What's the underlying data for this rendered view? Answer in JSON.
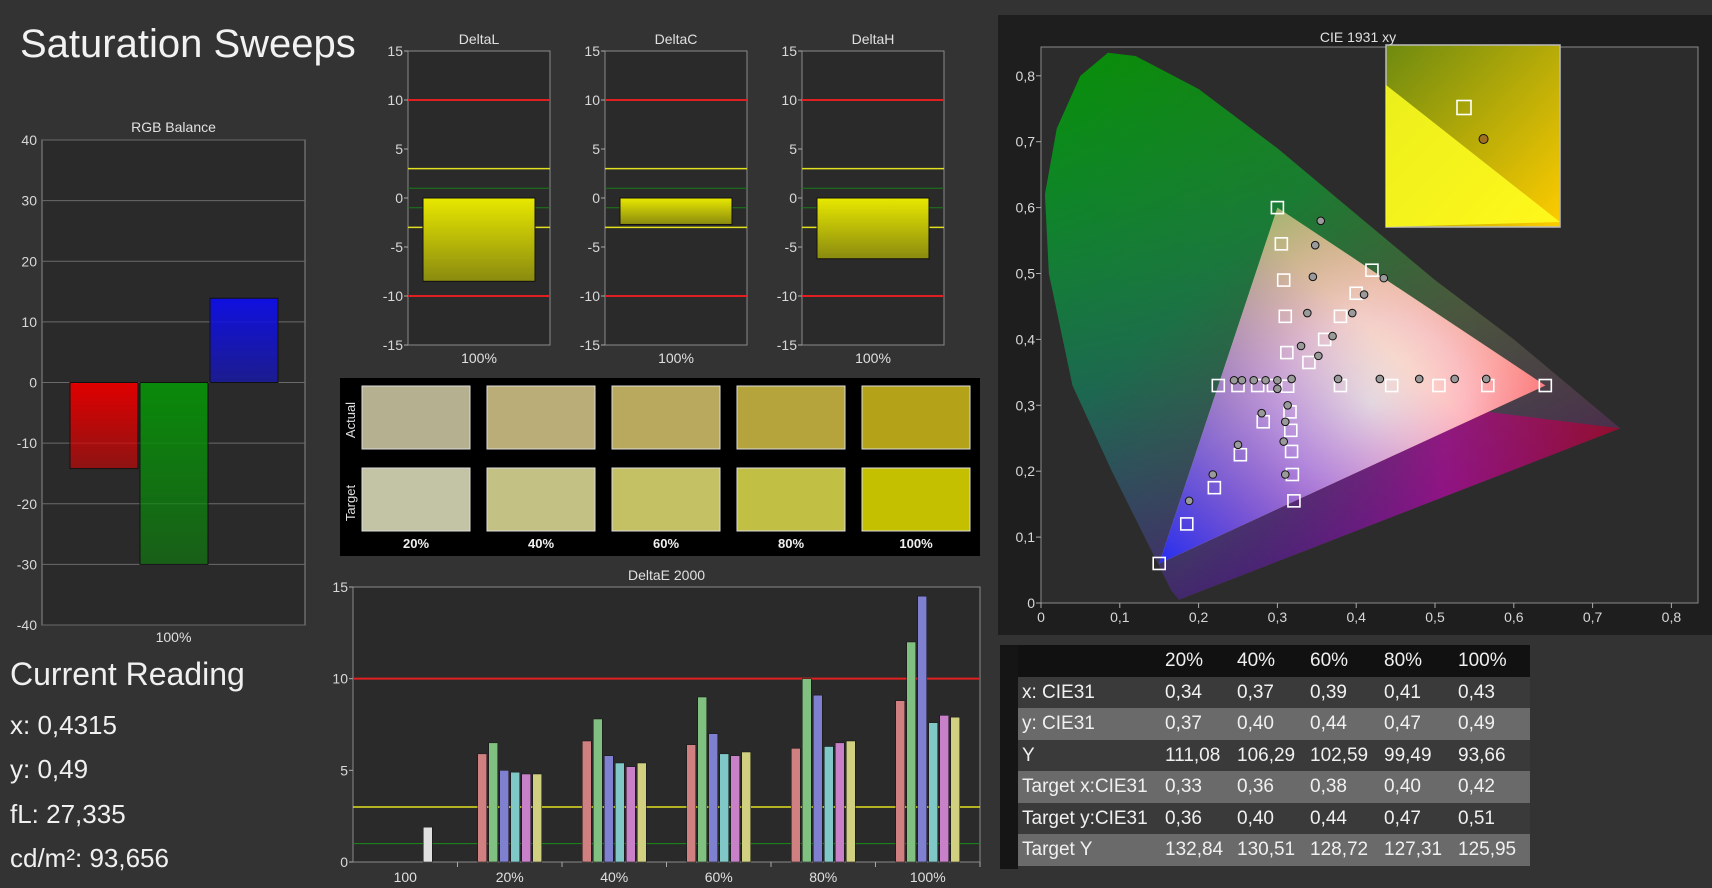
{
  "title": "Saturation Sweeps",
  "rgb_balance": {
    "title": "RGB Balance",
    "ylim": [
      -40,
      40
    ],
    "yticks": [
      40,
      30,
      20,
      10,
      0,
      -10,
      -20,
      -30,
      -40
    ],
    "category": "100%",
    "bars": [
      {
        "channel": "R",
        "value": -14.2,
        "color": "#e00000"
      },
      {
        "channel": "G",
        "value": -30.0,
        "color": "#0a8a0a"
      },
      {
        "channel": "B",
        "value": 13.9,
        "color": "#1010e0"
      }
    ]
  },
  "current_reading": {
    "title": "Current Reading",
    "x": "x: 0,4315",
    "y": "y: 0,49",
    "fl": "fL: 27,335",
    "cdm2": "cd/m²: 93,656"
  },
  "delta_charts": [
    {
      "title": "DeltaL",
      "value": -8.5,
      "category": "100%"
    },
    {
      "title": "DeltaC",
      "value": -2.7,
      "category": "100%"
    },
    {
      "title": "DeltaH",
      "value": -6.2,
      "category": "100%"
    }
  ],
  "delta_axis": {
    "ylim": [
      -15,
      15
    ],
    "yticks": [
      15,
      10,
      5,
      0,
      -5,
      -10,
      -15
    ],
    "red_lines": [
      10,
      -10
    ],
    "yellow_lines": [
      3,
      -3
    ],
    "green_lines": [
      1,
      -1
    ]
  },
  "swatches": {
    "actual_label": "Actual",
    "target_label": "Target",
    "levels": [
      "20%",
      "40%",
      "60%",
      "80%",
      "100%"
    ],
    "actual_colors": [
      "#b5b08f",
      "#bbad77",
      "#b8a95e",
      "#b4a43b",
      "#b4a318"
    ],
    "target_colors": [
      "#c3c3a5",
      "#c4c185",
      "#c4c064",
      "#c2bf45",
      "#c4c000"
    ]
  },
  "chart_data": {
    "type": "bar",
    "title": "DeltaE 2000",
    "ylim": [
      0,
      15
    ],
    "yticks": [
      15,
      10,
      5,
      0
    ],
    "red_line": 10,
    "yellow_line": 3,
    "green_line": 1,
    "categories": [
      "100",
      "20%",
      "40%",
      "60%",
      "80%",
      "100%"
    ],
    "series": [
      {
        "color": "#e0e0e0",
        "values": [
          1.9,
          null,
          null,
          null,
          null,
          null
        ]
      },
      {
        "color": "#d08080",
        "values": [
          null,
          5.9,
          6.6,
          6.4,
          6.2,
          8.8
        ]
      },
      {
        "color": "#80c080",
        "values": [
          null,
          6.5,
          7.8,
          9.0,
          10.0,
          12.0
        ]
      },
      {
        "color": "#8080d0",
        "values": [
          null,
          5.0,
          5.8,
          7.0,
          9.1,
          14.5
        ]
      },
      {
        "color": "#80c8c8",
        "values": [
          null,
          4.9,
          5.4,
          5.9,
          6.3,
          7.6
        ]
      },
      {
        "color": "#c880c8",
        "values": [
          null,
          4.8,
          5.2,
          5.8,
          6.5,
          8.0
        ]
      },
      {
        "color": "#d0d080",
        "values": [
          null,
          4.8,
          5.4,
          6.0,
          6.6,
          7.9
        ]
      }
    ]
  },
  "cie": {
    "title": "CIE 1931 xy",
    "xticks": [
      "0",
      "0,1",
      "0,2",
      "0,3",
      "0,4",
      "0,5",
      "0,6",
      "0,7",
      "0,8"
    ],
    "yticks": [
      "0",
      "0,1",
      "0,2",
      "0,3",
      "0,4",
      "0,5",
      "0,6",
      "0,7",
      "0,8"
    ],
    "gamut": [
      [
        0.64,
        0.33
      ],
      [
        0.3,
        0.6
      ],
      [
        0.15,
        0.06
      ]
    ],
    "targets": [
      [
        0.64,
        0.33
      ],
      [
        0.567,
        0.33
      ],
      [
        0.505,
        0.33
      ],
      [
        0.445,
        0.33
      ],
      [
        0.38,
        0.33
      ],
      [
        0.3,
        0.6
      ],
      [
        0.305,
        0.545
      ],
      [
        0.308,
        0.49
      ],
      [
        0.31,
        0.435
      ],
      [
        0.312,
        0.38
      ],
      [
        0.15,
        0.06
      ],
      [
        0.185,
        0.12
      ],
      [
        0.22,
        0.175
      ],
      [
        0.253,
        0.225
      ],
      [
        0.282,
        0.275
      ],
      [
        0.42,
        0.505
      ],
      [
        0.4,
        0.47
      ],
      [
        0.38,
        0.435
      ],
      [
        0.36,
        0.4
      ],
      [
        0.34,
        0.365
      ],
      [
        0.225,
        0.33
      ],
      [
        0.25,
        0.33
      ],
      [
        0.275,
        0.33
      ],
      [
        0.295,
        0.33
      ],
      [
        0.321,
        0.155
      ],
      [
        0.319,
        0.195
      ],
      [
        0.318,
        0.23
      ],
      [
        0.317,
        0.262
      ],
      [
        0.316,
        0.29
      ],
      [
        0.313,
        0.329
      ]
    ],
    "measured": [
      [
        0.565,
        0.34
      ],
      [
        0.525,
        0.34
      ],
      [
        0.48,
        0.34
      ],
      [
        0.43,
        0.34
      ],
      [
        0.377,
        0.34
      ],
      [
        0.355,
        0.58
      ],
      [
        0.348,
        0.543
      ],
      [
        0.345,
        0.495
      ],
      [
        0.338,
        0.44
      ],
      [
        0.33,
        0.39
      ],
      [
        0.188,
        0.155
      ],
      [
        0.218,
        0.195
      ],
      [
        0.25,
        0.24
      ],
      [
        0.28,
        0.288
      ],
      [
        0.3,
        0.325
      ],
      [
        0.435,
        0.493
      ],
      [
        0.41,
        0.468
      ],
      [
        0.395,
        0.44
      ],
      [
        0.37,
        0.405
      ],
      [
        0.352,
        0.375
      ],
      [
        0.245,
        0.338
      ],
      [
        0.255,
        0.338
      ],
      [
        0.27,
        0.338
      ],
      [
        0.285,
        0.338
      ],
      [
        0.3,
        0.338
      ],
      [
        0.31,
        0.195
      ],
      [
        0.308,
        0.245
      ],
      [
        0.31,
        0.275
      ],
      [
        0.313,
        0.3
      ],
      [
        0.318,
        0.34
      ]
    ],
    "inset_target": [
      0.42,
      0.505
    ],
    "inset_measured": [
      0.4315,
      0.49
    ]
  },
  "table": {
    "headers": [
      "",
      "20%",
      "40%",
      "60%",
      "80%",
      "100%"
    ],
    "rows": [
      [
        "x: CIE31",
        "0,34",
        "0,37",
        "0,39",
        "0,41",
        "0,43"
      ],
      [
        "y: CIE31",
        "0,37",
        "0,40",
        "0,44",
        "0,47",
        "0,49"
      ],
      [
        "Y",
        "111,08",
        "106,29",
        "102,59",
        "99,49",
        "93,66"
      ],
      [
        "Target x:CIE31",
        "0,33",
        "0,36",
        "0,38",
        "0,40",
        "0,42"
      ],
      [
        "Target y:CIE31",
        "0,36",
        "0,40",
        "0,44",
        "0,47",
        "0,51"
      ],
      [
        "Target Y",
        "132,84",
        "130,51",
        "128,72",
        "127,31",
        "125,95"
      ]
    ]
  }
}
